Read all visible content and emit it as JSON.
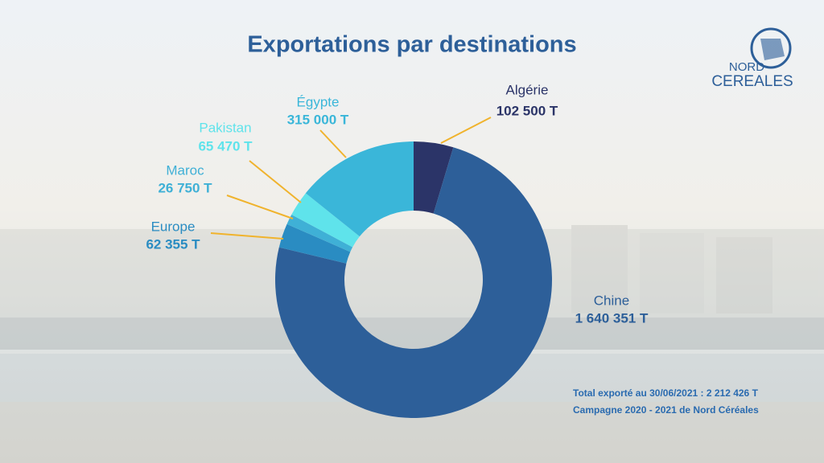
{
  "chart_data": {
    "type": "pie",
    "title": "Exportations par destinations",
    "categories": [
      "Algérie",
      "Chine",
      "Europe",
      "Maroc",
      "Pakistan",
      "Égypte"
    ],
    "values": [
      102500,
      1640351,
      62355,
      26750,
      65470,
      315000
    ],
    "value_labels": [
      "102 500 T",
      "1 640 351 T",
      "62 355 T",
      "26 750 T",
      "65 470 T",
      "315 000 T"
    ],
    "colors": [
      "#2b3468",
      "#2d5f99",
      "#2a8cc2",
      "#3fb0d6",
      "#5fe3eb",
      "#3ab6d9"
    ],
    "donut": true,
    "annotations": [
      "Total exporté au 30/06/2021 : 2 212 426 T",
      "Campagne 2020 - 2021 de Nord Céréales"
    ]
  },
  "logo": {
    "line1": "NORD",
    "line2": "CEREALES"
  }
}
